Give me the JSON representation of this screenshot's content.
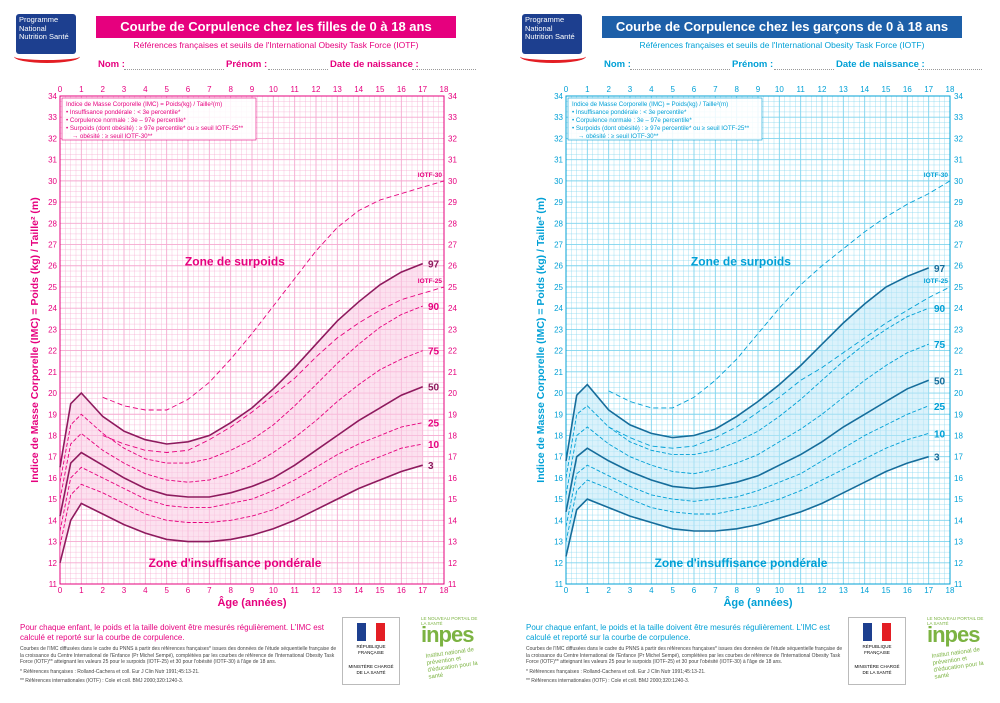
{
  "common": {
    "subtitle": "Références françaises et seuils de l'International Obesity Task Force (IOTF)",
    "nom": "Nom :",
    "prenom": "Prénom :",
    "dob": "Date de naissance :",
    "logo": "Programme National Nutrition Santé",
    "ylabel": "Indice de Masse Corporelle (IMC) = Poids (kg) / Taille² (m)",
    "xlabel": "Âge (années)",
    "legend": [
      "Indice de Masse Corporelle (IMC) = Poids(kg) / Taille²(m)",
      "• Insuffisance pondérale : < 3e percentile*",
      "• Corpulence normale : 3e – 97e percentile*",
      "• Surpoids (dont obésité) : ≥ 97e percentile* ou ≥ seuil IOTF-25**",
      "→ obésité : ≥ seuil IOTF-30**"
    ],
    "zone_over": "Zone de surpoids",
    "zone_under": "Zone d'insuffisance pondérale",
    "footer_main": "Pour chaque enfant, le poids et la taille doivent être mesurés régulièrement. L'IMC est calculé et reporté sur la courbe de corpulence.",
    "footer_small": "Courbes de l'IMC diffusées dans le cadre du PNNS à partir des références françaises* issues des données de l'étude séquentielle française de la croissance du Centre International de l'Enfance (Pr Michel Sempé), complétées par les courbes de référence de l'International Obesity Task Force (IOTF)** atteignant les valeurs 25 pour le surpoids (IOTF-25) et 30 pour l'obésité (IOTF-30) à l'âge de 18 ans.",
    "ref1": "* Références françaises : Rolland-Cachera et coll. Eur J Clin Nutr 1991;45:13-21.",
    "ref2": "** Références internationales (IOTF) : Cole et coll. BMJ 2000;320:1240-3.",
    "ministry": "MINISTÈRE CHARGÉ DE LA SANTÉ",
    "republic": "RÉPUBLIQUE FRANÇAISE",
    "inpes": "inpes",
    "inpes_sub": "Institut national de prévention et d'éducation pour la santé",
    "inpes_top": "LE NOUVEAU PORTAIL DE LA SANTÉ"
  },
  "pages": [
    {
      "title": "Courbe de Corpulence chez les filles de 0 à 18 ans",
      "accent": "#e6007e",
      "grid_color": "#f5a9d0",
      "fill_color": "#f9c8e2",
      "dark_color": "#8e1a5e"
    },
    {
      "title": "Courbe de Corpulence chez les garçons de 0 à 18 ans",
      "accent": "#1d5fa8",
      "heading_bg": "#1d5fa8",
      "grid_color": "#7fd4ee",
      "fill_color": "#bde8f7",
      "dark_color": "#166d9b",
      "text_color": "#00a0d6"
    }
  ],
  "chart_data": [
    {
      "type": "line",
      "title": "Courbe de Corpulence chez les filles de 0 à 18 ans",
      "xlabel": "Âge (années)",
      "ylabel": "Indice de Masse Corporelle (IMC) = Poids (kg) / Taille² (m)",
      "xlim": [
        0,
        18
      ],
      "ylim": [
        11,
        34
      ],
      "x": [
        0,
        0.5,
        1,
        2,
        3,
        4,
        5,
        6,
        7,
        8,
        9,
        10,
        11,
        12,
        13,
        14,
        15,
        16,
        17,
        18
      ],
      "series": [
        {
          "name": "3",
          "values": [
            12.0,
            14.0,
            14.8,
            14.3,
            13.8,
            13.4,
            13.1,
            13.0,
            13.0,
            13.1,
            13.3,
            13.6,
            14.0,
            14.5,
            15.0,
            15.5,
            15.9,
            16.3,
            16.6,
            null
          ]
        },
        {
          "name": "10",
          "values": [
            12.8,
            15.2,
            15.7,
            15.3,
            14.8,
            14.3,
            14.0,
            13.9,
            13.9,
            14.0,
            14.2,
            14.5,
            15.0,
            15.5,
            16.1,
            16.6,
            17.0,
            17.4,
            17.6,
            null
          ]
        },
        {
          "name": "25",
          "values": [
            13.5,
            16.0,
            16.5,
            16.0,
            15.5,
            15.0,
            14.7,
            14.6,
            14.6,
            14.8,
            15.0,
            15.4,
            15.9,
            16.5,
            17.1,
            17.6,
            18.0,
            18.4,
            18.6,
            null
          ]
        },
        {
          "name": "50",
          "values": [
            14.2,
            16.7,
            17.2,
            16.6,
            16.0,
            15.5,
            15.2,
            15.1,
            15.1,
            15.3,
            15.6,
            16.0,
            16.6,
            17.3,
            18.0,
            18.7,
            19.3,
            19.9,
            20.3,
            null
          ]
        },
        {
          "name": "75",
          "values": [
            15.0,
            17.6,
            18.1,
            17.3,
            16.7,
            16.2,
            15.9,
            15.8,
            15.9,
            16.2,
            16.6,
            17.2,
            17.9,
            18.7,
            19.6,
            20.4,
            21.1,
            21.6,
            22.0,
            null
          ]
        },
        {
          "name": "90",
          "values": [
            15.8,
            18.5,
            19.0,
            18.1,
            17.4,
            16.9,
            16.7,
            16.7,
            16.9,
            17.3,
            17.8,
            18.5,
            19.4,
            20.4,
            21.4,
            22.3,
            23.1,
            23.7,
            24.1,
            null
          ]
        },
        {
          "name": "97",
          "values": [
            16.5,
            19.5,
            20.0,
            18.9,
            18.2,
            17.8,
            17.6,
            17.7,
            18.0,
            18.6,
            19.3,
            20.2,
            21.2,
            22.3,
            23.4,
            24.3,
            25.1,
            25.7,
            26.1,
            null
          ]
        },
        {
          "name": "IOTF-25",
          "values": [
            null,
            null,
            null,
            18.0,
            17.6,
            17.3,
            17.2,
            17.3,
            17.8,
            18.4,
            19.1,
            19.9,
            20.7,
            21.7,
            22.6,
            23.3,
            23.9,
            24.4,
            24.7,
            25.0
          ]
        },
        {
          "name": "IOTF-30",
          "values": [
            null,
            null,
            null,
            19.8,
            19.4,
            19.2,
            19.2,
            19.7,
            20.5,
            21.6,
            22.8,
            24.1,
            25.4,
            26.7,
            27.8,
            28.6,
            29.1,
            29.4,
            29.7,
            30.0
          ]
        }
      ]
    },
    {
      "type": "line",
      "title": "Courbe de Corpulence chez les garçons de 0 à 18 ans",
      "xlabel": "Âge (années)",
      "ylabel": "Indice de Masse Corporelle (IMC) = Poids (kg) / Taille² (m)",
      "xlim": [
        0,
        18
      ],
      "ylim": [
        11,
        34
      ],
      "x": [
        0,
        0.5,
        1,
        2,
        3,
        4,
        5,
        6,
        7,
        8,
        9,
        10,
        11,
        12,
        13,
        14,
        15,
        16,
        17,
        18
      ],
      "series": [
        {
          "name": "3",
          "values": [
            12.3,
            14.5,
            15.0,
            14.6,
            14.2,
            13.9,
            13.6,
            13.5,
            13.5,
            13.6,
            13.8,
            14.1,
            14.4,
            14.8,
            15.3,
            15.8,
            16.3,
            16.7,
            17.0,
            null
          ]
        },
        {
          "name": "10",
          "values": [
            13.0,
            15.4,
            15.9,
            15.5,
            15.0,
            14.6,
            14.4,
            14.3,
            14.3,
            14.5,
            14.7,
            15.0,
            15.4,
            15.9,
            16.4,
            16.9,
            17.4,
            17.8,
            18.1,
            null
          ]
        },
        {
          "name": "25",
          "values": [
            13.7,
            16.2,
            16.6,
            16.1,
            15.6,
            15.2,
            15.0,
            14.9,
            15.0,
            15.1,
            15.4,
            15.8,
            16.2,
            16.8,
            17.4,
            18.0,
            18.5,
            19.0,
            19.4,
            null
          ]
        },
        {
          "name": "50",
          "values": [
            14.4,
            17.0,
            17.4,
            16.8,
            16.3,
            15.9,
            15.6,
            15.5,
            15.6,
            15.8,
            16.1,
            16.6,
            17.1,
            17.7,
            18.4,
            19.0,
            19.6,
            20.2,
            20.6,
            null
          ]
        },
        {
          "name": "75",
          "values": [
            15.2,
            18.0,
            18.4,
            17.6,
            17.0,
            16.6,
            16.3,
            16.2,
            16.4,
            16.7,
            17.1,
            17.7,
            18.3,
            19.0,
            19.8,
            20.6,
            21.3,
            21.9,
            22.3,
            null
          ]
        },
        {
          "name": "90",
          "values": [
            16.0,
            19.0,
            19.4,
            18.4,
            17.7,
            17.3,
            17.1,
            17.1,
            17.3,
            17.7,
            18.2,
            18.9,
            19.7,
            20.6,
            21.5,
            22.3,
            23.0,
            23.6,
            24.0,
            null
          ]
        },
        {
          "name": "97",
          "values": [
            16.8,
            19.9,
            20.4,
            19.2,
            18.5,
            18.1,
            17.9,
            18.0,
            18.3,
            18.9,
            19.6,
            20.4,
            21.3,
            22.3,
            23.3,
            24.2,
            25.0,
            25.5,
            25.9,
            null
          ]
        },
        {
          "name": "IOTF-25",
          "values": [
            null,
            null,
            null,
            18.4,
            17.9,
            17.5,
            17.4,
            17.5,
            17.9,
            18.4,
            19.1,
            19.8,
            20.6,
            21.2,
            21.9,
            22.6,
            23.3,
            23.9,
            24.5,
            25.0
          ]
        },
        {
          "name": "IOTF-30",
          "values": [
            null,
            null,
            null,
            20.1,
            19.6,
            19.3,
            19.3,
            19.8,
            20.6,
            21.6,
            22.8,
            24.0,
            25.1,
            26.0,
            26.8,
            27.6,
            28.3,
            28.9,
            29.4,
            30.0
          ]
        }
      ]
    }
  ]
}
